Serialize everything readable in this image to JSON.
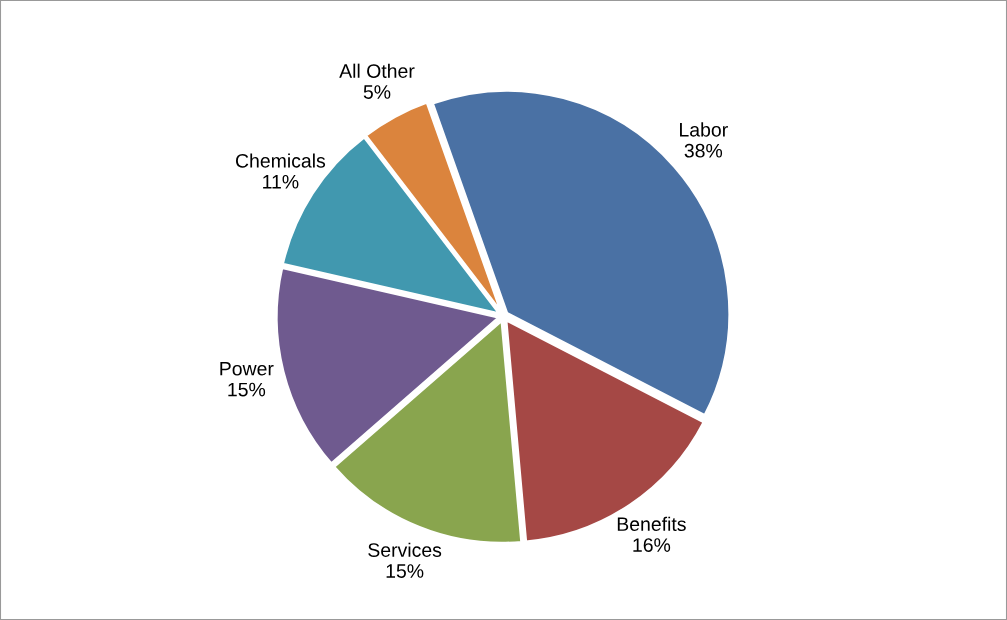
{
  "chart_data": {
    "type": "pie",
    "categories": [
      "Labor",
      "Benefits",
      "Services",
      "Power",
      "Chemicals",
      "All Other"
    ],
    "values": [
      38,
      16,
      15,
      15,
      11,
      5
    ],
    "value_labels": [
      "38%",
      "16%",
      "15%",
      "15%",
      "11%",
      "5%"
    ],
    "colors": [
      "#4a71a4",
      "#a54845",
      "#89a54e",
      "#6f5a8f",
      "#4198af",
      "#db843d"
    ],
    "legend": false
  }
}
